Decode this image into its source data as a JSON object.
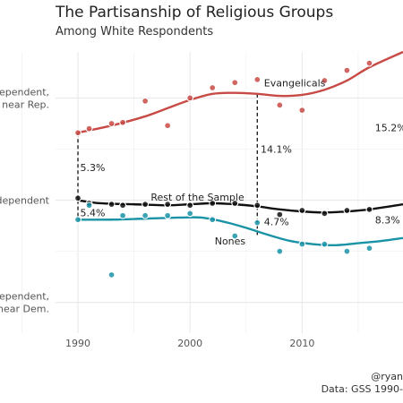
{
  "title": "The Partisanship of Religious Groups",
  "subtitle": "Among White Respondents",
  "caption": {
    "handle": "@ryan",
    "source": "Data: GSS 1990-"
  },
  "chart_data": {
    "type": "line",
    "xlim": [
      1988,
      2019
    ],
    "ylim": [
      -1.3,
      1.45
    ],
    "x_ticks": [
      1990,
      2000,
      2010
    ],
    "x_tick_labels": [
      "1990",
      "2000",
      "2010"
    ],
    "y_ticks": [
      {
        "value": 1,
        "lines": [
          "Independent,",
          "near Rep."
        ]
      },
      {
        "value": 0,
        "lines": [
          "Independent"
        ]
      },
      {
        "value": -1,
        "lines": [
          "Independent,",
          "near Dem."
        ]
      }
    ],
    "grid": true,
    "series": [
      {
        "name": "Evangelicals",
        "color": "#c84a45",
        "points": [
          [
            1990,
            0.66
          ],
          [
            1991,
            0.7
          ],
          [
            1993,
            0.75
          ],
          [
            1994,
            0.76
          ],
          [
            1996,
            0.97
          ],
          [
            1998,
            0.73
          ],
          [
            2000,
            1.0
          ],
          [
            2002,
            1.1
          ],
          [
            2004,
            1.15
          ],
          [
            2006,
            1.18
          ],
          [
            2008,
            0.93
          ],
          [
            2010,
            0.88
          ],
          [
            2012,
            1.17
          ],
          [
            2014,
            1.27
          ],
          [
            2016,
            1.34
          ]
        ],
        "trend": [
          [
            1990,
            0.66
          ],
          [
            1993,
            0.73
          ],
          [
            1996,
            0.82
          ],
          [
            1998,
            0.9
          ],
          [
            2000,
            0.98
          ],
          [
            2002,
            1.04
          ],
          [
            2004,
            1.05
          ],
          [
            2006,
            1.04
          ],
          [
            2008,
            1.02
          ],
          [
            2010,
            1.03
          ],
          [
            2012,
            1.08
          ],
          [
            2014,
            1.17
          ],
          [
            2016,
            1.3
          ],
          [
            2019,
            1.45
          ]
        ]
      },
      {
        "name": "Rest of the Sample",
        "color": "#111111",
        "points": [
          [
            1990,
            0.02
          ],
          [
            1991,
            -0.03
          ],
          [
            1993,
            -0.04
          ],
          [
            1994,
            -0.05
          ],
          [
            1996,
            -0.04
          ],
          [
            1998,
            -0.04
          ],
          [
            2000,
            -0.05
          ],
          [
            2002,
            -0.03
          ],
          [
            2004,
            -0.03
          ],
          [
            2006,
            -0.05
          ],
          [
            2008,
            -0.14
          ],
          [
            2010,
            -0.1
          ],
          [
            2012,
            -0.13
          ],
          [
            2014,
            -0.1
          ],
          [
            2016,
            -0.09
          ]
        ],
        "trend": [
          [
            1990,
            0.0
          ],
          [
            1992,
            -0.03
          ],
          [
            1995,
            -0.04
          ],
          [
            1998,
            -0.05
          ],
          [
            2000,
            -0.04
          ],
          [
            2002,
            -0.03
          ],
          [
            2004,
            -0.04
          ],
          [
            2006,
            -0.06
          ],
          [
            2008,
            -0.09
          ],
          [
            2010,
            -0.11
          ],
          [
            2012,
            -0.12
          ],
          [
            2014,
            -0.11
          ],
          [
            2016,
            -0.09
          ],
          [
            2019,
            -0.04
          ]
        ]
      },
      {
        "name": "Nones",
        "color": "#1a93a7",
        "points": [
          [
            1990,
            -0.19
          ],
          [
            1991,
            -0.05
          ],
          [
            1993,
            -0.73
          ],
          [
            1994,
            -0.15
          ],
          [
            1996,
            -0.15
          ],
          [
            1998,
            -0.15
          ],
          [
            2000,
            -0.13
          ],
          [
            2002,
            -0.19
          ],
          [
            2004,
            -0.35
          ],
          [
            2006,
            -0.22
          ],
          [
            2008,
            -0.5
          ],
          [
            2010,
            -0.43
          ],
          [
            2012,
            -0.43
          ],
          [
            2014,
            -0.5
          ],
          [
            2016,
            -0.47
          ]
        ],
        "trend": [
          [
            1990,
            -0.19
          ],
          [
            1993,
            -0.19
          ],
          [
            1996,
            -0.18
          ],
          [
            1999,
            -0.17
          ],
          [
            2001,
            -0.17
          ],
          [
            2003,
            -0.21
          ],
          [
            2005,
            -0.27
          ],
          [
            2007,
            -0.34
          ],
          [
            2009,
            -0.4
          ],
          [
            2011,
            -0.43
          ],
          [
            2013,
            -0.44
          ],
          [
            2015,
            -0.42
          ],
          [
            2017,
            -0.4
          ],
          [
            2019,
            -0.37
          ]
        ]
      }
    ],
    "annotations": [
      {
        "text": "Evangelicals",
        "x": 2006.6,
        "y": 1.15,
        "anchor": "start"
      },
      {
        "text": "Rest of the Sample",
        "x": 1996.5,
        "y": 0.03,
        "anchor": "start"
      },
      {
        "text": "Nones",
        "x": 2002.2,
        "y": -0.4,
        "anchor": "start"
      },
      {
        "text": "5.3%",
        "x": 1990.2,
        "y": 0.32,
        "anchor": "start"
      },
      {
        "text": "5.4%",
        "x": 1990.2,
        "y": -0.12,
        "anchor": "start"
      },
      {
        "text": "14.1%",
        "x": 2006.3,
        "y": 0.5,
        "anchor": "start"
      },
      {
        "text": "4.7%",
        "x": 2006.6,
        "y": -0.21,
        "anchor": "start"
      },
      {
        "text": "15.2%",
        "x": 2016.5,
        "y": 0.71,
        "anchor": "start"
      },
      {
        "text": "8.3%",
        "x": 2016.5,
        "y": -0.19,
        "anchor": "start"
      }
    ],
    "gap_markers": [
      {
        "x": 1990,
        "y1": 0.66,
        "y2": 0.0
      },
      {
        "x": 1990,
        "y1": 0.0,
        "y2": -0.19
      },
      {
        "x": 2006,
        "y1": 1.04,
        "y2": -0.06
      },
      {
        "x": 2006,
        "y1": -0.06,
        "y2": -0.34
      }
    ]
  }
}
